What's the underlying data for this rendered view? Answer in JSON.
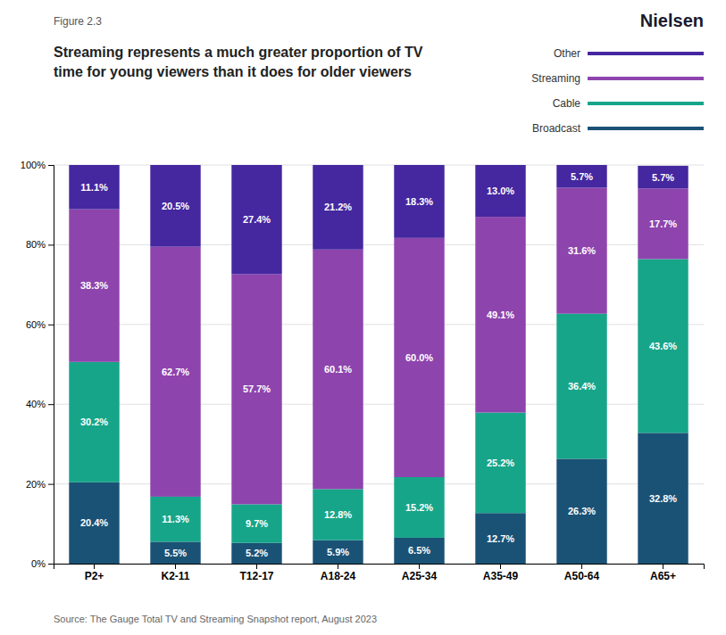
{
  "chart_data": {
    "type": "bar",
    "stacked": true,
    "title": "Streaming represents a much greater proportion of TV\ntime for young viewers than it does for older viewers",
    "annotations": [
      "Figure 2.3",
      "Source: The Gauge Total TV and Streaming Snapshot report, August 2023",
      "Nielsen"
    ],
    "categories": [
      "P2+",
      "K2-11",
      "T12-17",
      "A18-24",
      "A25-34",
      "A35-49",
      "A50-64",
      "A65+"
    ],
    "series": [
      {
        "name": "Broadcast",
        "color": "#1a5276",
        "values": [
          20.4,
          5.5,
          5.2,
          5.9,
          6.5,
          12.7,
          26.3,
          32.8
        ],
        "value_labels": [
          "20.4%",
          "5.5%",
          "5.2%",
          "5.9%",
          "6.5%",
          "12.7%",
          "26.3%",
          "32.8%"
        ]
      },
      {
        "name": "Cable",
        "color": "#17a589",
        "values": [
          30.2,
          11.3,
          9.7,
          12.8,
          15.2,
          25.2,
          36.4,
          43.6
        ],
        "value_labels": [
          "30.2%",
          "11.3%",
          "9.7%",
          "12.8%",
          "15.2%",
          "25.2%",
          "36.4%",
          "43.6%"
        ]
      },
      {
        "name": "Streaming",
        "color": "#8e44ad",
        "values": [
          38.3,
          62.7,
          57.7,
          60.1,
          60.0,
          49.1,
          31.6,
          17.7
        ],
        "value_labels": [
          "38.3%",
          "62.7%",
          "57.7%",
          "60.1%",
          "60.0%",
          "49.1%",
          "31.6%",
          "17.7%"
        ]
      },
      {
        "name": "Other",
        "color": "#4527a0",
        "values": [
          11.1,
          20.5,
          27.4,
          21.2,
          18.3,
          13.0,
          5.7,
          5.7
        ],
        "value_labels": [
          "11.1%",
          "20.5%",
          "27.4%",
          "21.2%",
          "18.3%",
          "13.0%",
          "5.7%",
          "5.7%"
        ]
      }
    ],
    "ylim": [
      0,
      100
    ],
    "yticks": [
      {
        "value": 0,
        "label": "0%"
      },
      {
        "value": 20,
        "label": "20%"
      },
      {
        "value": 40,
        "label": "40%"
      },
      {
        "value": 60,
        "label": "60%"
      },
      {
        "value": 80,
        "label": "80%"
      },
      {
        "value": 100,
        "label": "100%"
      }
    ],
    "grid": true,
    "legend": "upper right",
    "data_labels": true
  }
}
